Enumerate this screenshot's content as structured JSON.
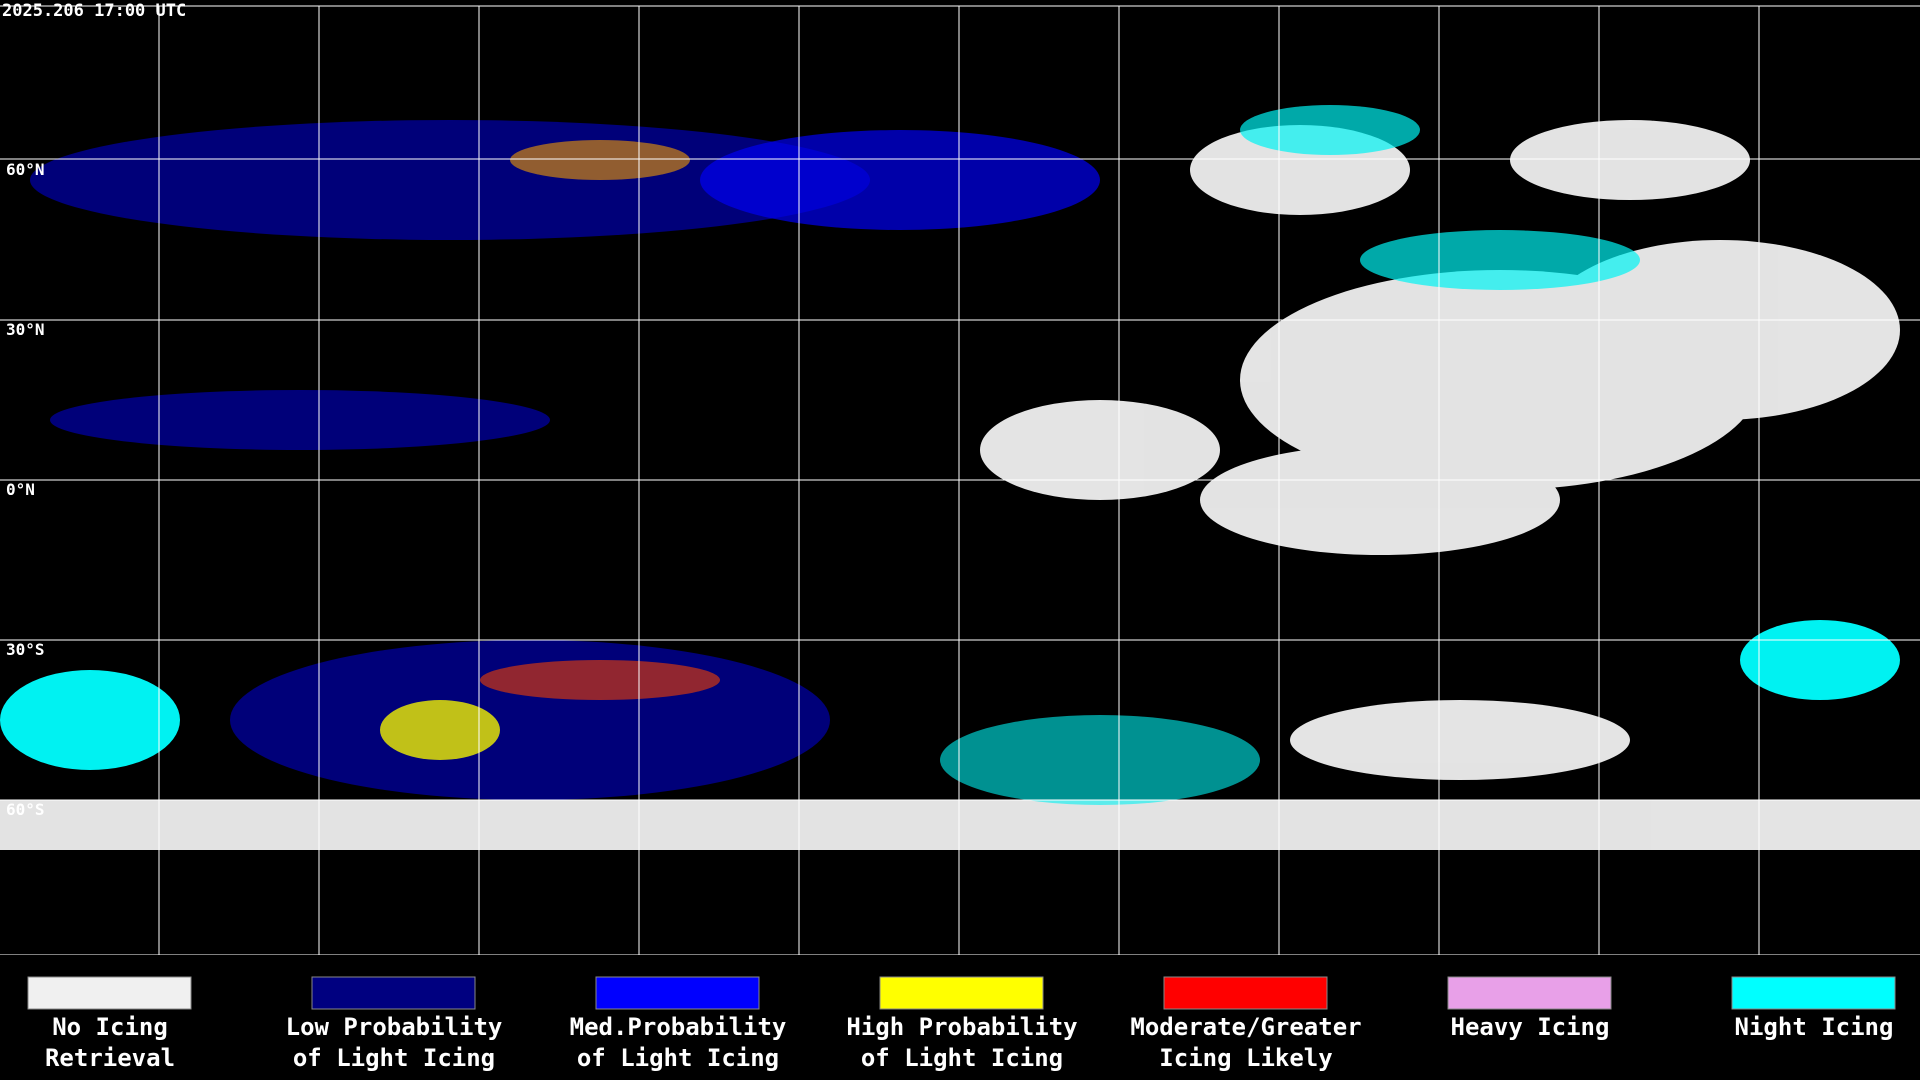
{
  "header": {
    "timestamp": "2025.206 17:00 UTC"
  },
  "lat_labels": [
    "60°N",
    "30°N",
    "0°N",
    "30°S",
    "60°S"
  ],
  "legend": [
    {
      "lines": [
        "No Icing",
        "Retrieval"
      ],
      "color": "#f0f0f0"
    },
    {
      "lines": [
        "Low Probability",
        "of Light Icing"
      ],
      "color": "#000080"
    },
    {
      "lines": [
        "Med.Probability",
        "of Light Icing"
      ],
      "color": "#0000ff"
    },
    {
      "lines": [
        "High Probability",
        "of Light Icing"
      ],
      "color": "#ffff00"
    },
    {
      "lines": [
        "Moderate/Greater",
        "Icing Likely"
      ],
      "color": "#ff0000"
    },
    {
      "lines": [
        "Heavy Icing"
      ],
      "color": "#e8a0e8"
    },
    {
      "lines": [
        "Night Icing"
      ],
      "color": "#00ffff"
    }
  ]
}
